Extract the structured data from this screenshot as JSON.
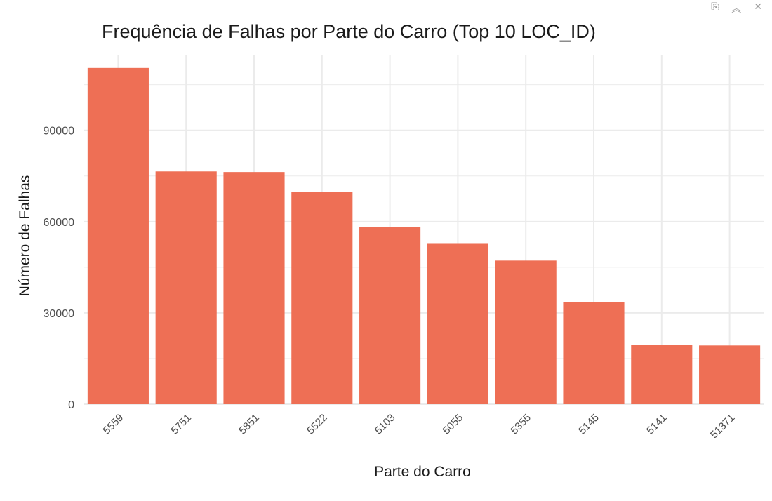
{
  "toolbar": {
    "items": [
      {
        "icon": "export-icon",
        "glyph": "⎘"
      },
      {
        "icon": "collapse-icon",
        "glyph": "︽"
      },
      {
        "icon": "close-icon",
        "glyph": "✕"
      }
    ]
  },
  "chart_data": {
    "type": "bar",
    "title": "Frequência de Falhas por Parte do Carro (Top 10 LOC_ID)",
    "xlabel": "Parte do Carro",
    "ylabel": "Número de Falhas",
    "categories": [
      "5559",
      "5751",
      "5851",
      "5522",
      "5103",
      "5055",
      "5355",
      "5145",
      "5141",
      "51371"
    ],
    "values": [
      110500,
      76500,
      76300,
      69700,
      58200,
      52700,
      47200,
      33600,
      19600,
      19300
    ],
    "ylim": [
      0,
      110500
    ],
    "yticks": [
      0,
      30000,
      60000,
      90000
    ],
    "grid": true,
    "bar_color": "#ee6f55",
    "grid_color": "#ebebeb"
  }
}
